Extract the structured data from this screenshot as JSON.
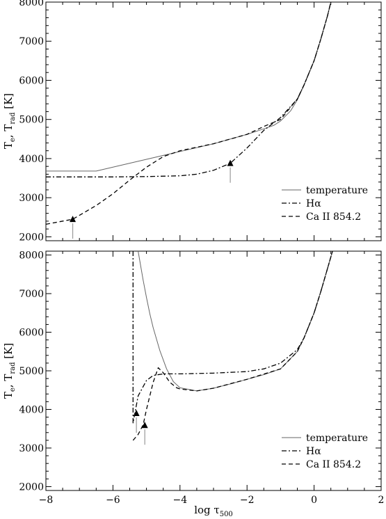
{
  "chart_data": [
    {
      "type": "line",
      "xlabel": "log τ",
      "xlabel_sub": "500",
      "ylabel_prefix": "T",
      "ylabel_sub1": "e",
      "ylabel_mid": ", T",
      "ylabel_sub2": "rad",
      "ylabel_suffix": " [K]",
      "xlim": [
        -8,
        2
      ],
      "ylim": [
        1900,
        8000
      ],
      "xticks": [
        -8,
        -6,
        -4,
        -2,
        0,
        2
      ],
      "xtick_labels": [
        "",
        "",
        "",
        "",
        "",
        ""
      ],
      "yticks": [
        2000,
        3000,
        4000,
        5000,
        6000,
        7000,
        8000
      ],
      "ytick_labels": [
        "2000",
        "3000",
        "4000",
        "5000",
        "6000",
        "7000",
        "8000"
      ],
      "legend_position": "bottom-right",
      "series": [
        {
          "name": "temperature",
          "style": "solid",
          "color": "#666666",
          "x": [
            -8,
            -6.5,
            -5,
            -4,
            -3,
            -2,
            -1.5,
            -1.2,
            -1,
            -0.7,
            -0.5,
            -0.3,
            0,
            0.2,
            0.4,
            0.5
          ],
          "y": [
            3680,
            3680,
            3980,
            4180,
            4380,
            4620,
            4760,
            4850,
            4960,
            5220,
            5500,
            5880,
            6500,
            7050,
            7650,
            8000
          ]
        },
        {
          "name": "Hα",
          "style": "dashdot",
          "color": "#000000",
          "x": [
            -8,
            -6,
            -5,
            -4,
            -3.5,
            -3,
            -2.5,
            -2,
            -1.5,
            -1,
            -0.5,
            -0.3,
            0,
            0.2,
            0.4,
            0.5
          ],
          "y": [
            3530,
            3530,
            3540,
            3560,
            3600,
            3700,
            3880,
            4270,
            4720,
            5050,
            5520,
            5880,
            6500,
            7050,
            7650,
            8000
          ]
        },
        {
          "name": "Ca II 854.2",
          "style": "dashed",
          "color": "#000000",
          "x": [
            -8,
            -7.2,
            -6.5,
            -6,
            -5.5,
            -5,
            -4.5,
            -4,
            -3,
            -2,
            -1.5,
            -1,
            -0.5,
            -0.3,
            0,
            0.2,
            0.4,
            0.5
          ],
          "y": [
            2320,
            2450,
            2800,
            3100,
            3450,
            3780,
            4050,
            4200,
            4380,
            4620,
            4820,
            5000,
            5520,
            5880,
            6500,
            7050,
            7650,
            8000
          ]
        }
      ],
      "markers": [
        {
          "series": "Ca II 854.2",
          "x": -7.2,
          "y": 2450
        },
        {
          "series": "Hα",
          "x": -2.5,
          "y": 3880
        }
      ]
    },
    {
      "type": "line",
      "xlabel": "log τ",
      "xlabel_sub": "500",
      "ylabel_prefix": "T",
      "ylabel_sub1": "e",
      "ylabel_mid": ", T",
      "ylabel_sub2": "rad",
      "ylabel_suffix": " [K]",
      "xlim": [
        -8,
        2
      ],
      "ylim": [
        1900,
        8100
      ],
      "xticks": [
        -8,
        -6,
        -4,
        -2,
        0,
        2
      ],
      "xtick_labels": [
        "−8",
        "−6",
        "−4",
        "−2",
        "0",
        "2"
      ],
      "yticks": [
        2000,
        3000,
        4000,
        5000,
        6000,
        7000,
        8000
      ],
      "ytick_labels": [
        "2000",
        "3000",
        "4000",
        "5000",
        "6000",
        "7000",
        "8000"
      ],
      "legend_position": "bottom-right",
      "series": [
        {
          "name": "temperature",
          "style": "solid",
          "color": "#666666",
          "x": [
            -5.25,
            -5.1,
            -5,
            -4.9,
            -4.8,
            -4.6,
            -4.4,
            -4.2,
            -4,
            -3.5,
            -3,
            -2.5,
            -2,
            -1.5,
            -1,
            -0.5,
            -0.3,
            0,
            0.2,
            0.4,
            0.55
          ],
          "y": [
            8100,
            7350,
            6900,
            6480,
            6120,
            5520,
            5050,
            4720,
            4560,
            4480,
            4550,
            4660,
            4780,
            4900,
            5050,
            5500,
            5850,
            6500,
            7050,
            7650,
            8100
          ]
        },
        {
          "name": "Hα",
          "style": "dashdot",
          "color": "#000000",
          "x": [
            -5.4,
            -5.4,
            -5.25,
            -5,
            -4.8,
            -4.5,
            -4,
            -3,
            -2,
            -1.5,
            -1,
            -0.5,
            -0.3,
            0,
            0.2,
            0.4,
            0.55
          ],
          "y": [
            8100,
            3650,
            4350,
            4750,
            4880,
            4920,
            4920,
            4940,
            4980,
            5050,
            5200,
            5550,
            5850,
            6500,
            7050,
            7650,
            8100
          ]
        },
        {
          "name": "Ca II 854.2",
          "style": "dashed",
          "color": "#000000",
          "x": [
            -5.4,
            -5.25,
            -5.1,
            -5.0,
            -4.8,
            -4.65,
            -4.5,
            -4.3,
            -4.1,
            -4,
            -3.5,
            -3,
            -2,
            -1,
            -0.5,
            -0.3,
            0,
            0.2,
            0.4,
            0.55
          ],
          "y": [
            3200,
            3350,
            3600,
            4000,
            4700,
            5080,
            4950,
            4700,
            4560,
            4530,
            4480,
            4550,
            4780,
            5050,
            5500,
            5850,
            6500,
            7050,
            7650,
            8100
          ]
        }
      ],
      "markers": [
        {
          "series": "Hα",
          "x": -5.3,
          "y": 3900
        },
        {
          "series": "Ca II 854.2",
          "x": -5.05,
          "y": 3590
        }
      ]
    }
  ]
}
